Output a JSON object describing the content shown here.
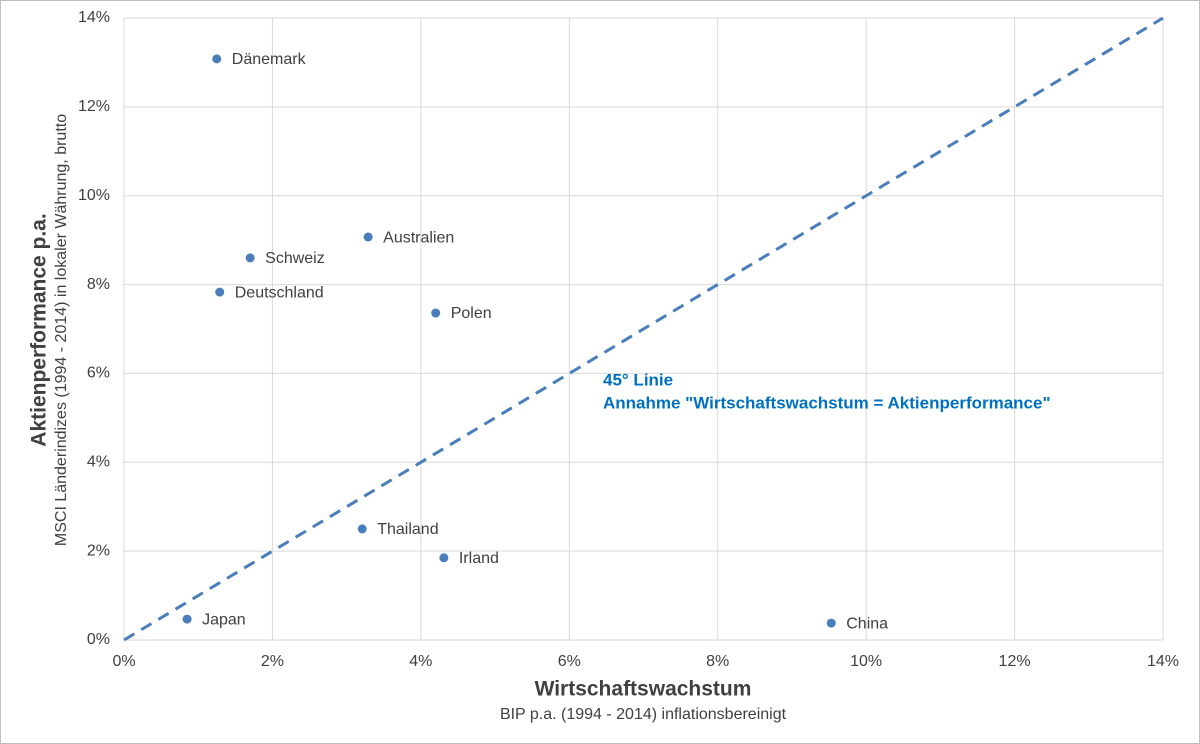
{
  "chart_data": {
    "type": "scatter",
    "x_title": "Wirtschaftswachstum",
    "x_subtitle": "BIP p.a. (1994 - 2014) inflationsbereinigt",
    "y_title": "Aktienperformance p.a.",
    "y_subtitle": "MSCI Länderindizes (1994 - 2014) in lokaler Währung, brutto",
    "annotation": [
      "45° Linie",
      "Annahme \"Wirtschaftswachstum = Aktienperformance\""
    ],
    "annotation_color": "#0070c0",
    "series": [
      {
        "color": "#4a7ebb",
        "labels": [
          "Dänemark",
          "Schweiz",
          "Australien",
          "Deutschland",
          "Polen",
          "Thailand",
          "Irland",
          "Japan",
          "China"
        ],
        "x": [
          1.25,
          1.7,
          3.29,
          1.29,
          4.2,
          3.21,
          4.31,
          0.85,
          9.53
        ],
        "values": [
          13.08,
          8.6,
          9.07,
          7.83,
          7.36,
          2.5,
          1.85,
          0.47,
          0.38
        ]
      }
    ],
    "diagonal_line": true,
    "diagonal_color": "#4a7ebb",
    "grid": true,
    "xlim": [
      0,
      14
    ],
    "ylim": [
      0,
      14
    ],
    "xticks": [
      {
        "value": 0,
        "label": "0%"
      },
      {
        "value": 2,
        "label": "2%"
      },
      {
        "value": 4,
        "label": "4%"
      },
      {
        "value": 6,
        "label": "6%"
      },
      {
        "value": 8,
        "label": "8%"
      },
      {
        "value": 10,
        "label": "10%"
      },
      {
        "value": 12,
        "label": "12%"
      },
      {
        "value": 14,
        "label": "14%"
      }
    ],
    "yticks": [
      {
        "value": 0,
        "label": "0%"
      },
      {
        "value": 2,
        "label": "2%"
      },
      {
        "value": 4,
        "label": "4%"
      },
      {
        "value": 6,
        "label": "6%"
      },
      {
        "value": 8,
        "label": "8%"
      },
      {
        "value": 10,
        "label": "10%"
      },
      {
        "value": 12,
        "label": "12%"
      },
      {
        "value": 14,
        "label": "14%"
      }
    ]
  }
}
